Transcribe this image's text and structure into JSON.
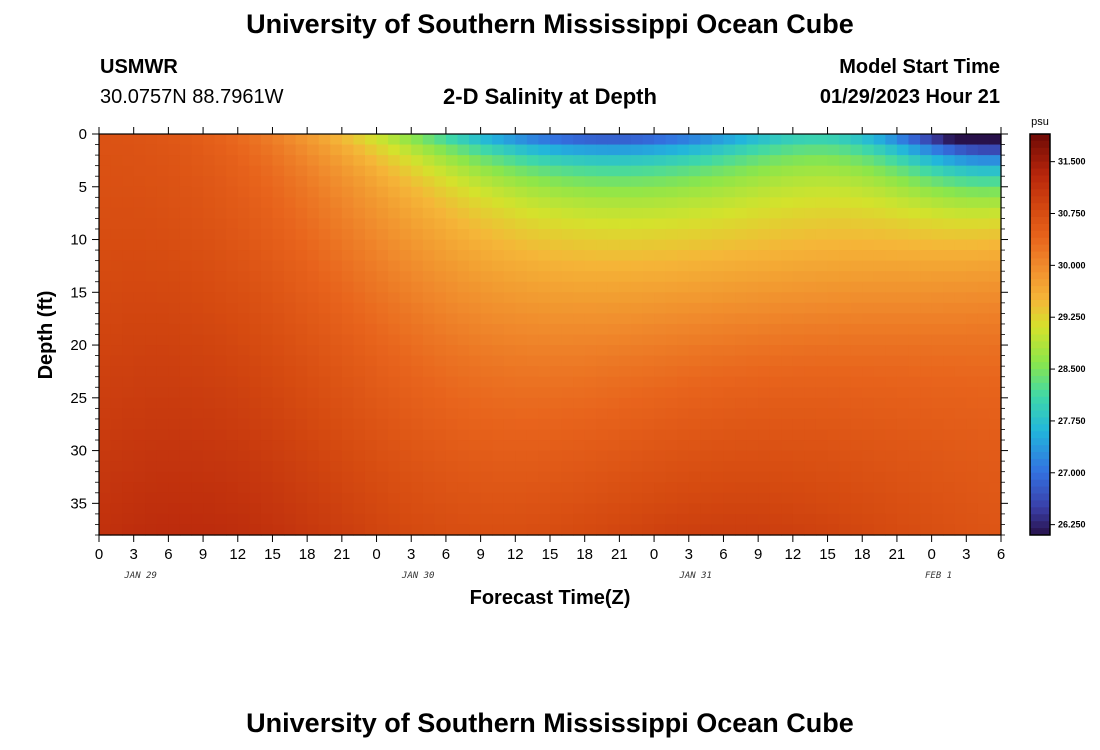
{
  "header": {
    "title": "University of Southern Mississippi Ocean Cube",
    "station_code": "USMWR",
    "station_coords": "30.0757N  88.7961W",
    "model_start_label": "Model Start Time",
    "model_start_value": "01/29/2023 Hour 21"
  },
  "footer": {
    "title": "University of Southern Mississippi Ocean Cube"
  },
  "chart_data": {
    "type": "heatmap",
    "title": "2-D Salinity at Depth",
    "xlabel": "Forecast Time(Z)",
    "ylabel": "Depth (ft)",
    "x_tick_labels": [
      "0",
      "3",
      "6",
      "9",
      "12",
      "15",
      "18",
      "21",
      "0",
      "3",
      "6",
      "9",
      "12",
      "15",
      "18",
      "21",
      "0",
      "3",
      "6",
      "9",
      "12",
      "15",
      "18",
      "21",
      "0",
      "3",
      "6"
    ],
    "day_labels": [
      {
        "label": "JAN 29",
        "at_tick": 1.2
      },
      {
        "label": "JAN 30",
        "at_tick": 9.2
      },
      {
        "label": "JAN 31",
        "at_tick": 17.2
      },
      {
        "label": "FEB 1",
        "at_tick": 24.2
      }
    ],
    "y_ticks": [
      0,
      5,
      10,
      15,
      20,
      25,
      30,
      35
    ],
    "ylim": [
      0,
      38
    ],
    "y_inverted": true,
    "colorbar": {
      "unit": "psu",
      "tick_labels": [
        "31.500",
        "30.750",
        "30.000",
        "29.250",
        "28.500",
        "27.750",
        "27.000",
        "26.250"
      ],
      "tick_values": [
        31.5,
        30.75,
        30.0,
        29.25,
        28.5,
        27.75,
        27.0,
        26.25
      ],
      "range": [
        26.1,
        31.9
      ],
      "colors": [
        {
          "v": 26.1,
          "c": "#28114a"
        },
        {
          "v": 26.5,
          "c": "#3a3fa8"
        },
        {
          "v": 27.0,
          "c": "#3370e0"
        },
        {
          "v": 27.6,
          "c": "#22b5dc"
        },
        {
          "v": 28.1,
          "c": "#3fd8a8"
        },
        {
          "v": 28.6,
          "c": "#8ce64a"
        },
        {
          "v": 29.1,
          "c": "#d4e22c"
        },
        {
          "v": 29.5,
          "c": "#f5b638"
        },
        {
          "v": 30.0,
          "c": "#f08a2c"
        },
        {
          "v": 30.4,
          "c": "#e8641c"
        },
        {
          "v": 30.8,
          "c": "#d54a10"
        },
        {
          "v": 31.3,
          "c": "#b8260c"
        },
        {
          "v": 31.9,
          "c": "#6e0a05"
        }
      ]
    }
  }
}
